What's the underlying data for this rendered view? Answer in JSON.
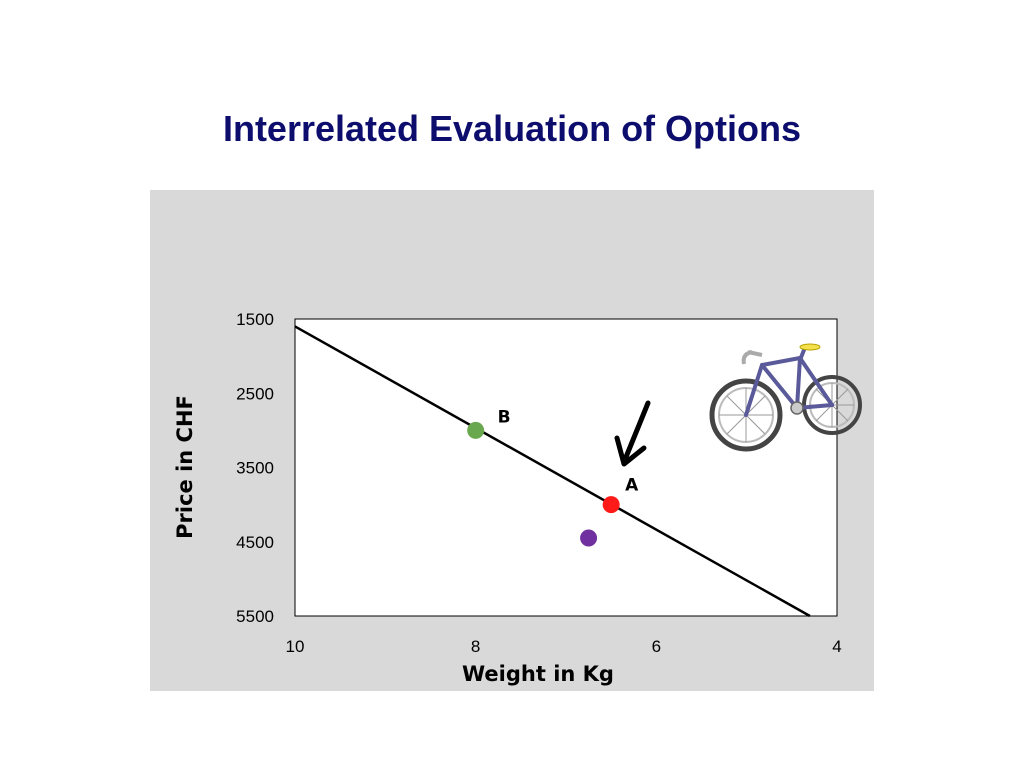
{
  "slide": {
    "title": "Interrelated Evaluation of Options"
  },
  "chart_data": {
    "type": "scatter",
    "title": "",
    "xlabel": "Weight in Kg",
    "ylabel": "Price in CHF",
    "xlim": [
      10,
      4
    ],
    "ylim": [
      1500,
      5500
    ],
    "x_reversed": true,
    "y_reversed": true,
    "x_ticks": [
      "10",
      "8",
      "6",
      "4"
    ],
    "y_ticks": [
      "1500",
      "2500",
      "3500",
      "4500",
      "5500"
    ],
    "grid": false,
    "legend": "none",
    "points": [
      {
        "label": "B",
        "x": 8.0,
        "y": 3000,
        "color": "#6aa84f"
      },
      {
        "label": "A",
        "x": 6.5,
        "y": 4000,
        "color": "#ff1a1a"
      },
      {
        "label": "",
        "x": 6.75,
        "y": 4450,
        "color": "#7030a0"
      }
    ],
    "trend_line": {
      "x": [
        10,
        4.3
      ],
      "y": [
        1600,
        5500
      ],
      "color": "#000000"
    },
    "annotations": [
      {
        "type": "arrow",
        "points_to": "A"
      },
      {
        "type": "image",
        "icon": "bicycle-icon"
      }
    ]
  }
}
